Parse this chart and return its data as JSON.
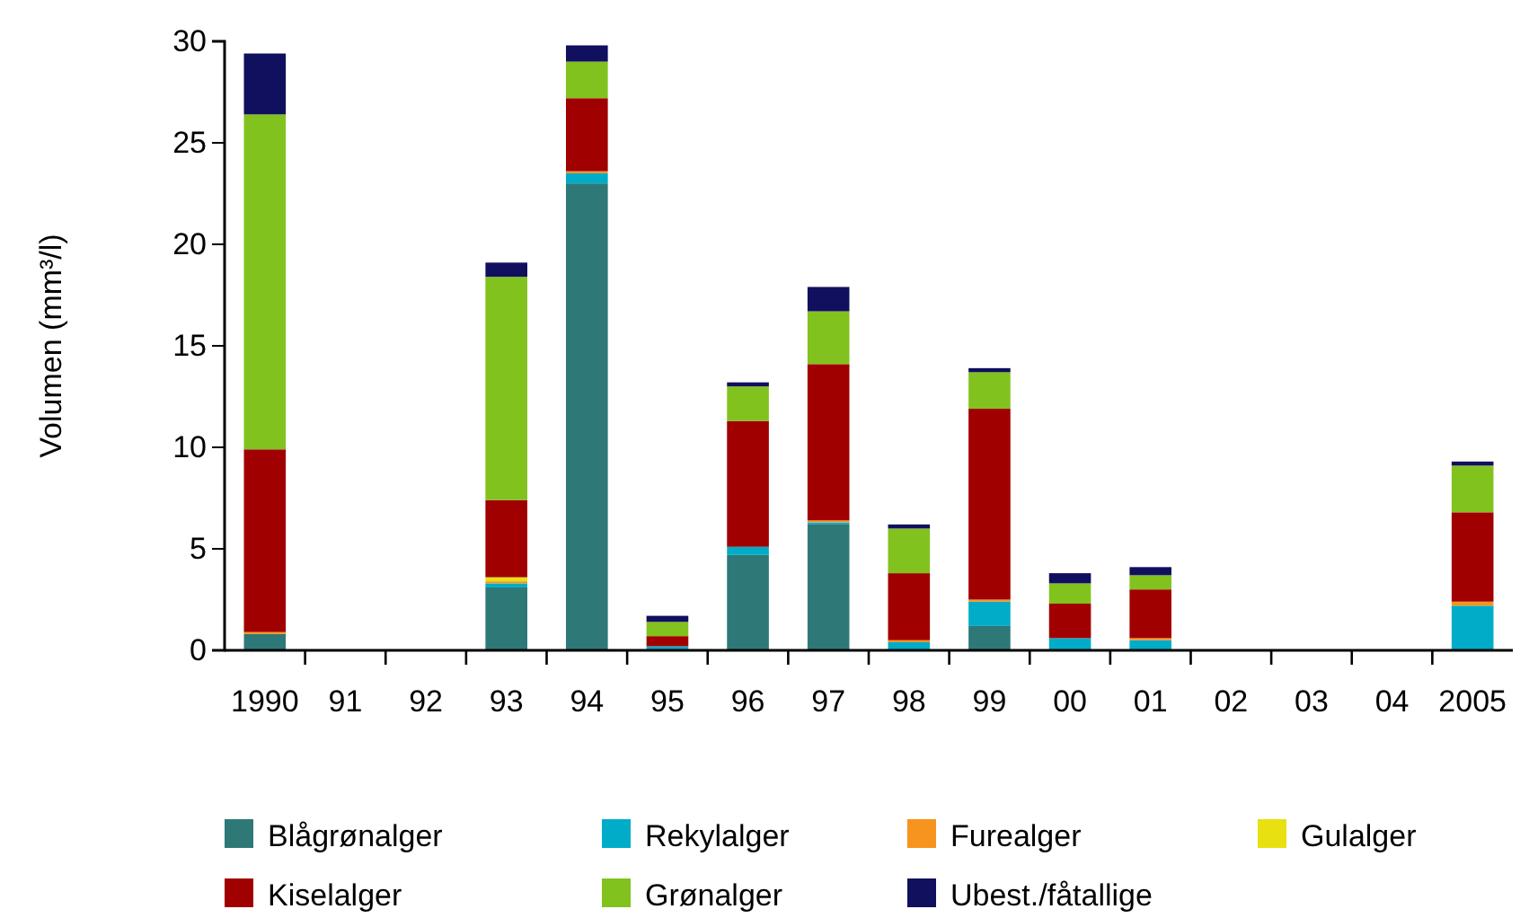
{
  "chart_data": {
    "type": "bar",
    "stacked": true,
    "ylabel": "Volumen (mm³/l)",
    "categories": [
      "1990",
      "91",
      "92",
      "93",
      "94",
      "95",
      "96",
      "97",
      "98",
      "99",
      "00",
      "01",
      "02",
      "03",
      "04",
      "2005"
    ],
    "ylim": [
      0,
      30
    ],
    "yticks": [
      0,
      5,
      10,
      15,
      20,
      25,
      30
    ],
    "grid": false,
    "legend": "bottom",
    "series": [
      {
        "name": "Blågrønalger",
        "color": "#2e7878",
        "values": [
          0.8,
          0,
          0,
          3.1,
          23.0,
          0,
          4.7,
          6.2,
          0,
          1.2,
          0,
          0,
          0,
          0,
          0,
          0
        ]
      },
      {
        "name": "Rekylalger",
        "color": "#00acc8",
        "values": [
          0,
          0,
          0,
          0.2,
          0.5,
          0.2,
          0.4,
          0.1,
          0.4,
          1.2,
          0.6,
          0.5,
          0,
          0,
          0,
          2.2
        ]
      },
      {
        "name": "Furealger",
        "color": "#f7941d",
        "values": [
          0.1,
          0,
          0,
          0.1,
          0.1,
          0,
          0,
          0.1,
          0.1,
          0.1,
          0,
          0.1,
          0,
          0,
          0,
          0.2
        ]
      },
      {
        "name": "Gulalger",
        "color": "#e8e010",
        "values": [
          0,
          0,
          0,
          0.2,
          0,
          0,
          0,
          0,
          0,
          0,
          0,
          0,
          0,
          0,
          0,
          0
        ]
      },
      {
        "name": "Kiselalger",
        "color": "#a00000",
        "values": [
          9.0,
          0,
          0,
          3.8,
          3.6,
          0.5,
          6.2,
          7.7,
          3.3,
          9.4,
          1.7,
          2.4,
          0,
          0,
          0,
          4.4
        ]
      },
      {
        "name": "Grønalger",
        "color": "#82c21e",
        "values": [
          16.5,
          0,
          0,
          11.0,
          1.8,
          0.7,
          1.7,
          2.6,
          2.2,
          1.8,
          1.0,
          0.7,
          0,
          0,
          0,
          2.3
        ]
      },
      {
        "name": "Ubest./fåtallige",
        "color": "#10105e",
        "values": [
          3.0,
          0,
          0,
          0.7,
          0.8,
          0.3,
          0.2,
          1.2,
          0.2,
          0.2,
          0.5,
          0.4,
          0,
          0,
          0,
          0.2
        ]
      }
    ]
  }
}
